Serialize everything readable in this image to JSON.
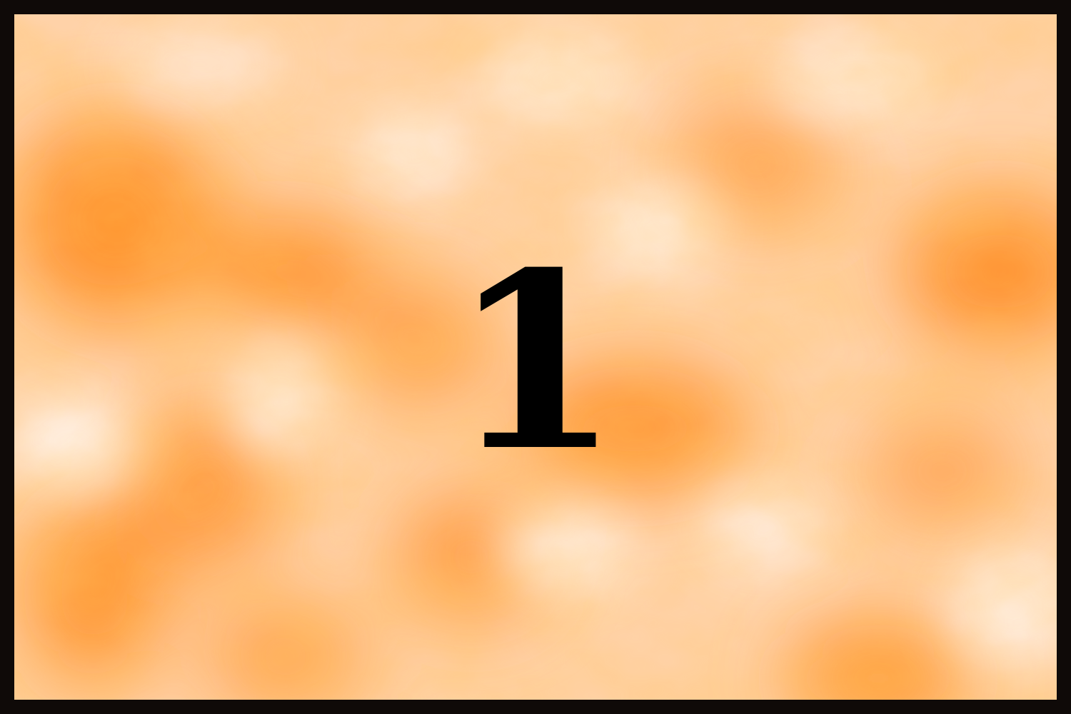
{
  "card": {
    "label": "1"
  },
  "colors": {
    "frame": "#0f0a08",
    "cloud_dark": "#ff8a1a",
    "cloud_light": "#fff6ee",
    "digit": "#000000"
  }
}
